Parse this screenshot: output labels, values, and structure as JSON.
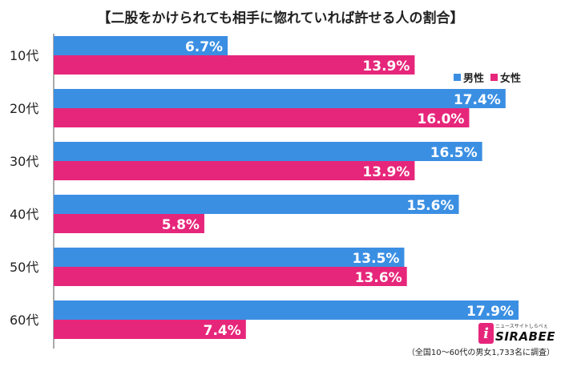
{
  "title": "【二股をかけられても相手に惚れていれば許せる人の割合】",
  "legend": {
    "male": "男性",
    "female": "女性"
  },
  "colors": {
    "male": "#3b8fe3",
    "female": "#e6267a",
    "axis": "#555555"
  },
  "logo": {
    "tagline": "ニュースサイトしらべぇ",
    "word": "SIRABEE",
    "mark": "i"
  },
  "note": "（全国10〜60代の男女1,733名に調査）",
  "chart_data": {
    "type": "bar",
    "orientation": "horizontal",
    "categories": [
      "10代",
      "20代",
      "30代",
      "40代",
      "50代",
      "60代"
    ],
    "series": [
      {
        "name": "男性",
        "values": [
          6.7,
          17.4,
          16.5,
          15.6,
          13.5,
          17.9
        ],
        "labels": [
          "6.7%",
          "17.4%",
          "16.5%",
          "15.6%",
          "13.5%",
          "17.9%"
        ]
      },
      {
        "name": "女性",
        "values": [
          13.9,
          16.0,
          13.9,
          5.8,
          13.6,
          7.4
        ],
        "labels": [
          "13.9%",
          "16.0%",
          "13.9%",
          "5.8%",
          "13.6%",
          "7.4%"
        ]
      }
    ],
    "xlim": [
      0,
      18.3
    ],
    "grid": false,
    "legend_position": "top-right"
  }
}
